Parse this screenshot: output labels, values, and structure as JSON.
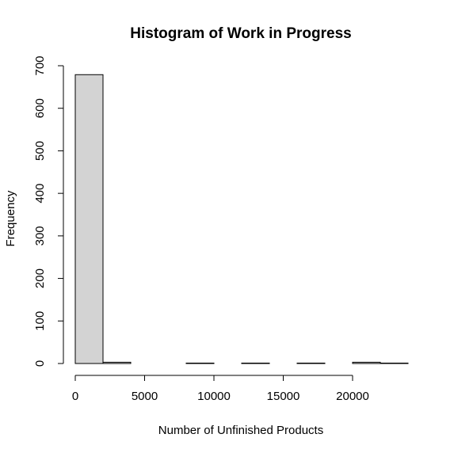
{
  "chart_data": {
    "type": "bar",
    "title": "Histogram of Work in Progress",
    "xlabel": "Number of Unfinished Products",
    "ylabel": "Frequency",
    "bin_edges": [
      0,
      2000,
      4000,
      6000,
      8000,
      10000,
      12000,
      14000,
      16000,
      18000,
      20000,
      22000,
      24000
    ],
    "values": [
      679,
      3,
      0,
      0,
      1,
      0,
      1,
      0,
      1,
      0,
      3,
      1
    ],
    "xlim": [
      0,
      24000
    ],
    "ylim": [
      0,
      700
    ],
    "x_ticks": [
      0,
      5000,
      10000,
      15000,
      20000
    ],
    "y_ticks": [
      0,
      100,
      200,
      300,
      400,
      500,
      600,
      700
    ],
    "grid": false,
    "bar_color": "#d3d3d3",
    "edge_color": "#000000"
  }
}
